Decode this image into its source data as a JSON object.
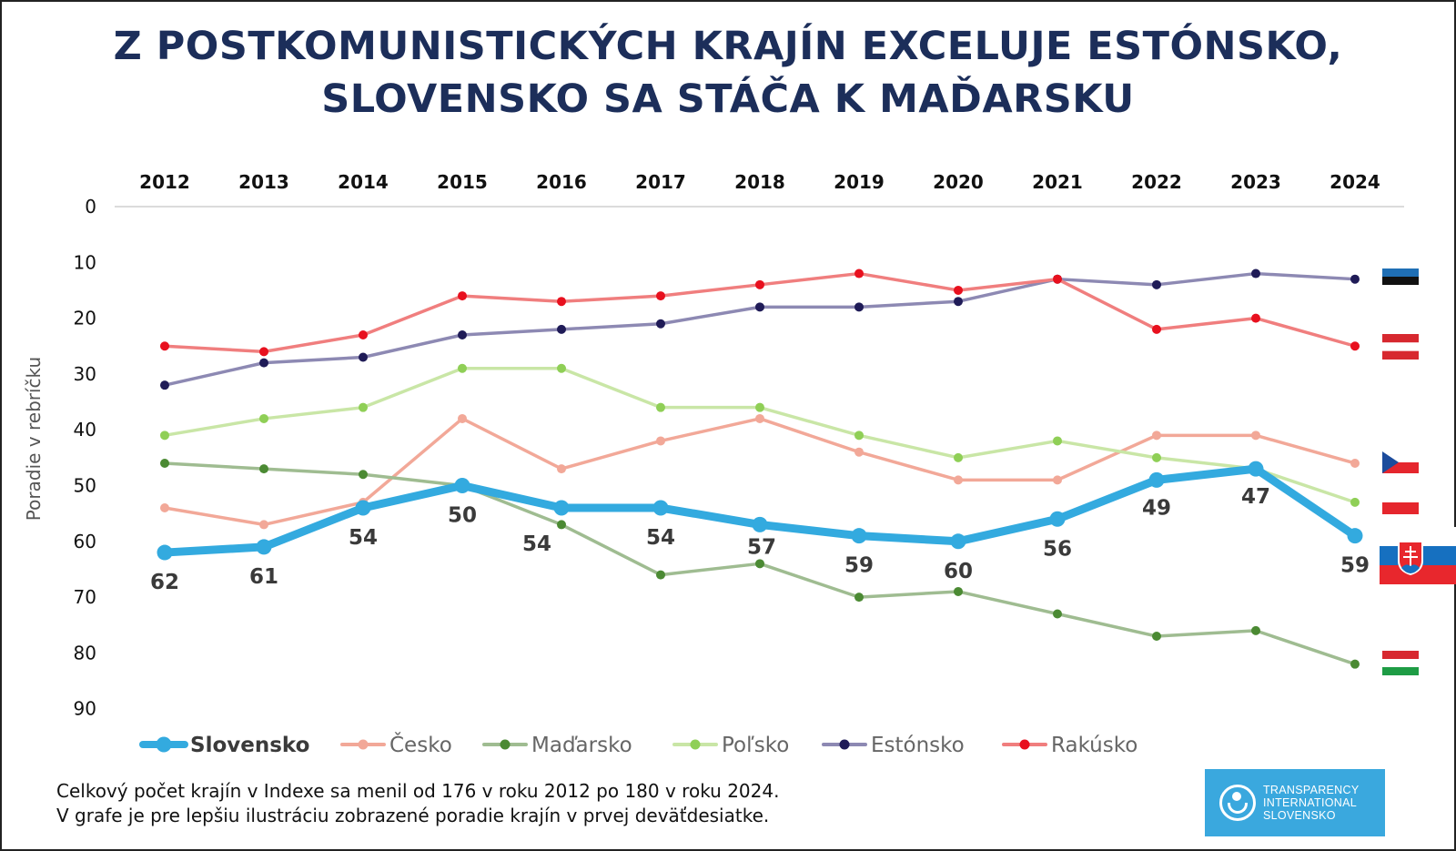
{
  "title": {
    "line1": "Z POSTKOMUNISTICKÝCH KRAJÍN EXCELUJE ESTÓNSKO,",
    "line2": "SLOVENSKO SA STÁČA K MAĎARSKU"
  },
  "footnote": {
    "line1": "Celkový počet krajín v Indexe sa menil od 176 v roku 2012 po 180 v roku 2024.",
    "line2": "V grafe je pre lepšiu ilustráciu zobrazené poradie krajín v prvej deväťdesiatke."
  },
  "logo": {
    "line1": "TRANSPARENCY",
    "line2": "INTERNATIONAL",
    "line3": "SLOVENSKO"
  },
  "flags": [
    {
      "country": "Estónsko",
      "colors": [
        "#1f6fb5",
        "#111111",
        "#ffffff"
      ]
    },
    {
      "country": "Rakúsko",
      "colors": [
        "#d7282f",
        "#ffffff",
        "#d7282f"
      ]
    },
    {
      "country": "Česko",
      "colors": [
        "#ffffff",
        "#e5262d",
        "#1c4c9c"
      ]
    },
    {
      "country": "Poľsko",
      "colors": [
        "#ffffff",
        "#e5262d"
      ]
    },
    {
      "country": "Slovensko",
      "colors": [
        "#ffffff",
        "#1670c0",
        "#e8272d"
      ]
    },
    {
      "country": "Maďarsko",
      "colors": [
        "#d7282f",
        "#ffffff",
        "#1e9c45"
      ]
    }
  ],
  "chart_data": {
    "type": "line",
    "title": "Z POSTKOMUNISTICKÝCH KRAJÍN EXCELUJE ESTÓNSKO, SLOVENSKO SA STÁČA K MAĎARSKU",
    "xlabel": "",
    "ylabel": "Poradie v rebríčku",
    "x": [
      2012,
      2013,
      2014,
      2015,
      2016,
      2017,
      2018,
      2019,
      2020,
      2021,
      2022,
      2023,
      2024
    ],
    "x_tick_labels": [
      "2012",
      "2013",
      "2014",
      "2015",
      "2016",
      "2017",
      "2018",
      "2019",
      "2020",
      "2021",
      "2022",
      "2023",
      "2024"
    ],
    "y_tick_labels": [
      "0",
      "10",
      "20",
      "30",
      "40",
      "50",
      "60",
      "70",
      "80",
      "90"
    ],
    "ylim": [
      0,
      90
    ],
    "y_inverted": true,
    "x_axis_position": "top",
    "legend_position": "bottom-left",
    "series": [
      {
        "name": "Slovensko",
        "color": "#33aadf",
        "emphasis": true,
        "values": [
          62,
          61,
          54,
          50,
          54,
          54,
          57,
          59,
          60,
          56,
          49,
          47,
          59
        ]
      },
      {
        "name": "Česko",
        "color": "#f2a898",
        "values": [
          54,
          57,
          53,
          38,
          47,
          42,
          38,
          44,
          49,
          49,
          41,
          41,
          46
        ]
      },
      {
        "name": "Maďarsko",
        "color": "#9fbc91",
        "marker_color": "#4b8a33",
        "values": [
          46,
          47,
          48,
          50,
          57,
          66,
          64,
          70,
          69,
          73,
          77,
          76,
          82
        ]
      },
      {
        "name": "Poľsko",
        "color": "#c9e6a6",
        "marker_color": "#8fcf56",
        "values": [
          41,
          38,
          36,
          29,
          29,
          36,
          36,
          41,
          45,
          42,
          45,
          47,
          53
        ]
      },
      {
        "name": "Estónsko",
        "color": "#8d89b3",
        "marker_color": "#1f1b57",
        "values": [
          32,
          28,
          27,
          23,
          22,
          21,
          18,
          18,
          17,
          13,
          14,
          12,
          13
        ]
      },
      {
        "name": "Rakúsko",
        "color": "#f07e7e",
        "marker_color": "#e8101e",
        "values": [
          25,
          26,
          23,
          16,
          17,
          16,
          14,
          12,
          15,
          13,
          22,
          20,
          25
        ]
      }
    ],
    "data_labels": {
      "series": "Slovensko",
      "values": [
        "62",
        "61",
        "54",
        "50",
        "54",
        "54",
        "57",
        "59",
        "60",
        "56",
        "49",
        "47",
        "59"
      ]
    }
  }
}
